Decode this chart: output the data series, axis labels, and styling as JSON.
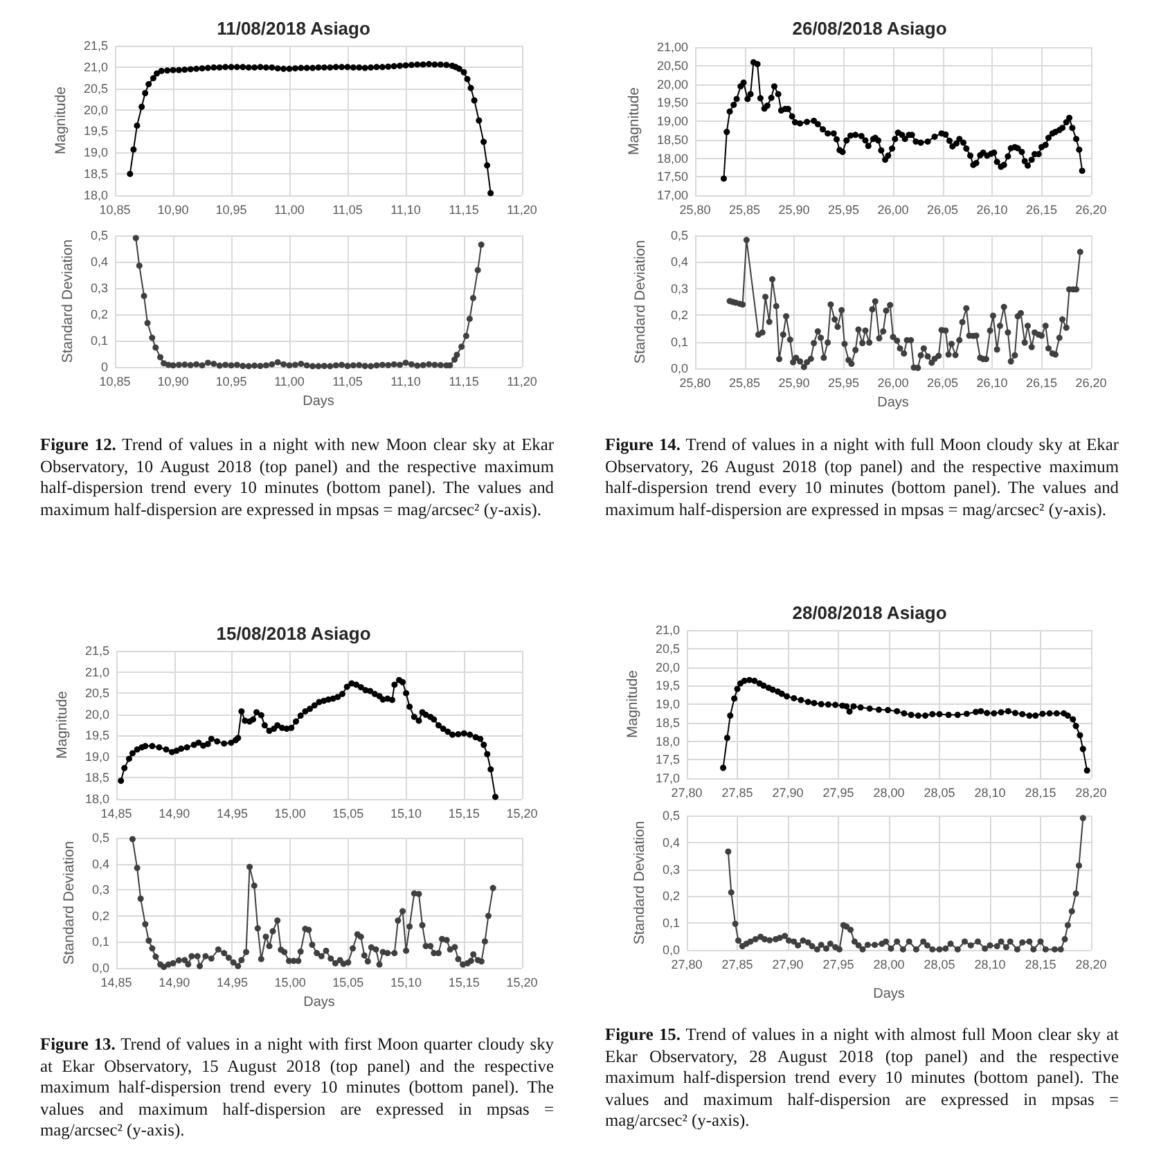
{
  "chart_data": [
    {
      "type": "line",
      "title": "11/08/2018 Asiago",
      "ylabel": "Magnitude",
      "grid": true,
      "marker": "circle",
      "line_style": "solid",
      "x": [
        10.863,
        10.866,
        10.869,
        10.873,
        10.876,
        10.879,
        10.883,
        10.886,
        10.89,
        10.895,
        10.9,
        10.905,
        10.91,
        10.915,
        10.92,
        10.925,
        10.93,
        10.935,
        10.94,
        10.945,
        10.95,
        10.955,
        10.96,
        10.965,
        10.97,
        10.975,
        10.98,
        10.985,
        10.99,
        10.995,
        11.0,
        11.005,
        11.01,
        11.015,
        11.02,
        11.025,
        11.03,
        11.035,
        11.04,
        11.045,
        11.05,
        11.055,
        11.06,
        11.065,
        11.07,
        11.075,
        11.08,
        11.085,
        11.09,
        11.095,
        11.1,
        11.105,
        11.11,
        11.115,
        11.12,
        11.125,
        11.13,
        11.135,
        11.14,
        11.143,
        11.146,
        11.15,
        11.153,
        11.156,
        11.159,
        11.163,
        11.167,
        11.17,
        11.173
      ],
      "series": [
        {
          "color": "#000000",
          "values": [
            18.5,
            19.07,
            19.63,
            20.07,
            20.39,
            20.6,
            20.74,
            20.85,
            20.91,
            20.92,
            20.93,
            20.93,
            20.94,
            20.95,
            20.96,
            20.97,
            20.98,
            20.99,
            20.99,
            21.0,
            21.0,
            21.0,
            21.0,
            20.99,
            20.99,
            21.0,
            20.99,
            20.99,
            20.97,
            20.96,
            20.96,
            20.97,
            20.98,
            20.98,
            20.98,
            20.99,
            20.99,
            20.99,
            21.0,
            21.0,
            21.0,
            20.99,
            20.99,
            20.98,
            20.99,
            21.0,
            21.0,
            21.01,
            21.02,
            21.03,
            21.04,
            21.05,
            21.06,
            21.06,
            21.07,
            21.06,
            21.06,
            21.05,
            21.03,
            21.0,
            20.96,
            20.88,
            20.72,
            20.51,
            20.22,
            19.75,
            19.25,
            18.7,
            18.05
          ]
        }
      ],
      "xlim": [
        10.85,
        11.2
      ],
      "xticks": [
        {
          "value": 10.85,
          "label": "10,85"
        },
        {
          "value": 10.9,
          "label": "10,90"
        },
        {
          "value": 10.95,
          "label": "10,95"
        },
        {
          "value": 11,
          "label": "11,00"
        },
        {
          "value": 11.05,
          "label": "11,05"
        },
        {
          "value": 11.1,
          "label": "11,10"
        },
        {
          "value": 11.15,
          "label": "11,15"
        },
        {
          "value": 11.2,
          "label": "11,20"
        }
      ],
      "ylim": [
        18,
        21.5
      ],
      "yticks": [
        {
          "value": 18,
          "label": "18,0"
        },
        {
          "value": 18.5,
          "label": "18,5"
        },
        {
          "value": 19,
          "label": "19,0"
        },
        {
          "value": 19.5,
          "label": "19,5"
        },
        {
          "value": 20,
          "label": "20,0"
        },
        {
          "value": 20.5,
          "label": "20,5"
        },
        {
          "value": 21,
          "label": "21,0"
        },
        {
          "value": 21.5,
          "label": "21,5"
        }
      ]
    },
    {
      "type": "line",
      "xlabel": "Days",
      "ylabel": "Standard Deviation",
      "grid": true,
      "marker": "circle",
      "line_style": "solid",
      "x": [
        10.868,
        10.871,
        10.875,
        10.878,
        10.882,
        10.885,
        10.889,
        10.892,
        10.896,
        10.9,
        10.905,
        10.91,
        10.915,
        10.92,
        10.925,
        10.93,
        10.935,
        10.94,
        10.945,
        10.95,
        10.955,
        10.96,
        10.965,
        10.97,
        10.975,
        10.98,
        10.985,
        10.99,
        10.995,
        11.0,
        11.005,
        11.01,
        11.015,
        11.02,
        11.025,
        11.03,
        11.035,
        11.04,
        11.045,
        11.05,
        11.055,
        11.06,
        11.065,
        11.07,
        11.075,
        11.08,
        11.085,
        11.09,
        11.095,
        11.1,
        11.105,
        11.11,
        11.115,
        11.12,
        11.125,
        11.13,
        11.135,
        11.138,
        11.142,
        11.144,
        11.148,
        11.152,
        11.155,
        11.158,
        11.162,
        11.165
      ],
      "series": [
        {
          "color": "#3f3f3f",
          "values": [
            0.49,
            0.385,
            0.27,
            0.167,
            0.111,
            0.074,
            0.037,
            0.014,
            0.008,
            0.006,
            0.008,
            0.009,
            0.007,
            0.01,
            0.006,
            0.016,
            0.012,
            0.005,
            0.008,
            0.006,
            0.008,
            0.004,
            0.003,
            0.005,
            0.004,
            0.006,
            0.01,
            0.018,
            0.01,
            0.006,
            0.008,
            0.012,
            0.006,
            0.003,
            0.003,
            0.004,
            0.003,
            0.006,
            0.008,
            0.004,
            0.006,
            0.007,
            0.004,
            0.003,
            0.006,
            0.008,
            0.007,
            0.01,
            0.008,
            0.016,
            0.01,
            0.005,
            0.007,
            0.01,
            0.008,
            0.007,
            0.006,
            0.006,
            0.028,
            0.046,
            0.077,
            0.118,
            0.183,
            0.262,
            0.368,
            0.465
          ]
        }
      ],
      "xlim": [
        10.85,
        11.2
      ],
      "xticks": [
        {
          "value": 10.85,
          "label": "10,85"
        },
        {
          "value": 10.9,
          "label": "10,90"
        },
        {
          "value": 10.95,
          "label": "10,95"
        },
        {
          "value": 11,
          "label": "11,00"
        },
        {
          "value": 11.05,
          "label": "11,05"
        },
        {
          "value": 11.1,
          "label": "11,10"
        },
        {
          "value": 11.15,
          "label": "11,15"
        },
        {
          "value": 11.2,
          "label": "11,20"
        }
      ],
      "ylim": [
        0,
        0.5
      ],
      "yticks": [
        0,
        {
          "value": 0.1,
          "label": "0,1"
        },
        {
          "value": 0.2,
          "label": "0,2"
        },
        {
          "value": 0.3,
          "label": "0,3"
        },
        {
          "value": 0.4,
          "label": "0,4"
        },
        {
          "value": 0.5,
          "label": "0,5"
        }
      ],
      "annotations": [
        "Figure 12. Trend of values in a night with new Moon clear sky at Ekar Observatory, 10 August 2018 (top panel) and the respective maximum half-dispersion trend every 10 minutes (bottom panel). The values and maximum half-dispersion are expressed in mpsas = mag/arcsec² (y-axis)."
      ]
    },
    {
      "type": "line",
      "title": "26/08/2018 Asiago",
      "ylabel": "Magnitude",
      "grid": true,
      "marker": "circle",
      "line_style": "solid",
      "x": [
        25.829,
        25.832,
        25.835,
        25.839,
        25.842,
        25.846,
        25.849,
        25.853,
        25.856,
        25.859,
        25.863,
        25.866,
        25.87,
        25.873,
        25.877,
        25.88,
        25.884,
        25.887,
        25.891,
        25.894,
        25.898,
        25.901,
        25.906,
        25.913,
        25.92,
        25.924,
        25.929,
        25.934,
        25.94,
        25.943,
        25.946,
        25.949,
        25.953,
        25.957,
        25.962,
        25.968,
        25.972,
        25.975,
        25.98,
        25.982,
        25.985,
        25.988,
        25.992,
        25.995,
        25.999,
        26.002,
        26.005,
        26.009,
        26.012,
        26.016,
        26.019,
        26.023,
        26.028,
        26.035,
        26.042,
        26.049,
        26.053,
        26.057,
        26.06,
        26.064,
        26.067,
        26.071,
        26.074,
        26.078,
        26.081,
        26.084,
        26.088,
        26.091,
        26.095,
        26.099,
        26.102,
        26.105,
        26.109,
        26.112,
        26.116,
        26.119,
        26.123,
        26.126,
        26.13,
        26.133,
        26.136,
        26.14,
        26.143,
        26.147,
        26.15,
        26.154,
        26.157,
        26.161,
        26.164,
        26.168,
        26.171,
        26.175,
        26.178,
        26.181,
        26.185,
        26.188,
        26.191
      ],
      "series": [
        {
          "color": "#000000",
          "values": [
            17.45,
            18.71,
            19.26,
            19.44,
            19.6,
            19.94,
            20.04,
            19.6,
            19.73,
            20.59,
            20.54,
            19.62,
            19.34,
            19.42,
            19.63,
            19.94,
            19.73,
            19.29,
            19.33,
            19.33,
            19.13,
            18.97,
            18.94,
            18.98,
            19.01,
            18.92,
            18.78,
            18.67,
            18.67,
            18.51,
            18.22,
            18.17,
            18.48,
            18.61,
            18.63,
            18.6,
            18.48,
            18.33,
            18.52,
            18.55,
            18.48,
            18.21,
            17.96,
            18.07,
            18.26,
            18.52,
            18.69,
            18.63,
            18.52,
            18.63,
            18.63,
            18.45,
            18.42,
            18.45,
            18.58,
            18.67,
            18.64,
            18.47,
            18.32,
            18.4,
            18.52,
            18.42,
            18.26,
            18.07,
            17.82,
            17.87,
            18.08,
            18.15,
            18.07,
            18.12,
            18.15,
            17.9,
            17.77,
            17.82,
            18.05,
            18.27,
            18.3,
            18.27,
            18.17,
            17.92,
            17.8,
            17.96,
            18.11,
            18.11,
            18.3,
            18.36,
            18.55,
            18.67,
            18.71,
            18.76,
            18.82,
            18.97,
            19.09,
            18.82,
            18.52,
            18.23,
            17.66
          ]
        }
      ],
      "xlim": [
        25.8,
        26.2
      ],
      "xticks": [
        {
          "value": 25.8,
          "label": "25,80"
        },
        {
          "value": 25.85,
          "label": "25,85"
        },
        {
          "value": 25.9,
          "label": "25,90"
        },
        {
          "value": 25.95,
          "label": "25,95"
        },
        {
          "value": 26,
          "label": "26,00"
        },
        {
          "value": 26.05,
          "label": "26,05"
        },
        {
          "value": 26.1,
          "label": "26,10"
        },
        {
          "value": 26.15,
          "label": "26,15"
        },
        {
          "value": 26.2,
          "label": "26,20"
        }
      ],
      "ylim": [
        17,
        21
      ],
      "yticks": [
        {
          "value": 17,
          "label": "17,00"
        },
        {
          "value": 17.5,
          "label": "17,50"
        },
        {
          "value": 18,
          "label": "18,00"
        },
        {
          "value": 18.5,
          "label": "18,50"
        },
        {
          "value": 19,
          "label": "19,00"
        },
        {
          "value": 19.5,
          "label": "19,50"
        },
        {
          "value": 20,
          "label": "20,00"
        },
        {
          "value": 20.5,
          "label": "20,50"
        },
        {
          "value": 21,
          "label": "21,00"
        }
      ]
    },
    {
      "type": "line",
      "xlabel": "Days",
      "ylabel": "Standard Deviation",
      "grid": true,
      "marker": "circle",
      "line_style": "solid",
      "x": [
        25.835,
        25.838,
        25.841,
        25.845,
        25.848,
        25.852,
        25.864,
        25.868,
        25.871,
        25.875,
        25.878,
        25.882,
        25.885,
        25.889,
        25.892,
        25.896,
        25.899,
        25.902,
        25.906,
        25.91,
        25.913,
        25.917,
        25.92,
        25.924,
        25.927,
        25.93,
        25.934,
        25.937,
        25.941,
        25.944,
        25.948,
        25.951,
        25.955,
        25.958,
        25.962,
        25.965,
        25.969,
        25.972,
        25.976,
        25.979,
        25.982,
        25.986,
        25.99,
        25.993,
        25.997,
        26.0,
        26.004,
        26.007,
        26.011,
        26.014,
        26.018,
        26.021,
        26.025,
        26.028,
        26.031,
        26.035,
        26.039,
        26.042,
        26.046,
        26.049,
        26.053,
        26.056,
        26.059,
        26.063,
        26.067,
        26.07,
        26.074,
        26.077,
        26.081,
        26.084,
        26.088,
        26.091,
        26.094,
        26.098,
        26.101,
        26.105,
        26.108,
        26.112,
        26.116,
        26.119,
        26.123,
        26.126,
        26.129,
        26.133,
        26.136,
        26.14,
        26.143,
        26.147,
        26.15,
        26.154,
        26.157,
        26.161,
        26.164,
        26.168,
        26.171,
        26.175,
        26.178,
        26.182,
        26.185,
        26.189
      ],
      "series": [
        {
          "color": "#3f3f3f",
          "values": [
            0.253,
            0.25,
            0.247,
            0.243,
            0.24,
            0.483,
            0.127,
            0.135,
            0.269,
            0.175,
            0.335,
            0.234,
            0.035,
            0.127,
            0.196,
            0.108,
            0.023,
            0.04,
            0.026,
            0.005,
            0.023,
            0.036,
            0.095,
            0.139,
            0.115,
            0.04,
            0.097,
            0.24,
            0.184,
            0.156,
            0.219,
            0.092,
            0.031,
            0.017,
            0.069,
            0.146,
            0.095,
            0.142,
            0.097,
            0.222,
            0.252,
            0.113,
            0.139,
            0.217,
            0.238,
            0.118,
            0.104,
            0.075,
            0.056,
            0.106,
            0.106,
            0.003,
            0.002,
            0.049,
            0.075,
            0.045,
            0.021,
            0.036,
            0.047,
            0.144,
            0.142,
            0.052,
            0.092,
            0.05,
            0.106,
            0.174,
            0.226,
            0.123,
            0.122,
            0.123,
            0.04,
            0.035,
            0.035,
            0.142,
            0.198,
            0.071,
            0.16,
            0.231,
            0.135,
            0.026,
            0.049,
            0.196,
            0.208,
            0.097,
            0.16,
            0.08,
            0.135,
            0.127,
            0.123,
            0.16,
            0.075,
            0.056,
            0.052,
            0.115,
            0.184,
            0.153,
            0.297,
            0.297,
            0.297,
            0.438
          ]
        }
      ],
      "xlim": [
        25.8,
        26.2
      ],
      "xticks": [
        {
          "value": 25.8,
          "label": "25,80"
        },
        {
          "value": 25.85,
          "label": "25,85"
        },
        {
          "value": 25.9,
          "label": "25,90"
        },
        {
          "value": 25.95,
          "label": "25,95"
        },
        {
          "value": 26,
          "label": "26,00"
        },
        {
          "value": 26.05,
          "label": "26,05"
        },
        {
          "value": 26.1,
          "label": "26,10"
        },
        {
          "value": 26.15,
          "label": "26,15"
        },
        {
          "value": 26.2,
          "label": "26,20"
        }
      ],
      "ylim": [
        0,
        0.5
      ],
      "yticks": [
        {
          "value": 0,
          "label": "0,0"
        },
        {
          "value": 0.1,
          "label": "0,1"
        },
        {
          "value": 0.2,
          "label": "0,2"
        },
        {
          "value": 0.3,
          "label": "0,3"
        },
        {
          "value": 0.4,
          "label": "0,4"
        },
        {
          "value": 0.5,
          "label": "0,5"
        }
      ],
      "annotations": [
        "Figure 14. Trend of values in a night with full Moon cloudy sky at Ekar Observatory, 26 August 2018 (top panel) and the respective maximum half-dispersion trend every 10 minutes (bottom panel). The values and maximum half-dispersion are expressed in mpsas = mag/arcsec² (y-axis)."
      ]
    },
    {
      "type": "line",
      "title": "15/08/2018 Asiago",
      "ylabel": "Magnitude",
      "grid": true,
      "marker": "circle",
      "line_style": "solid",
      "x": [
        14.854,
        14.857,
        14.861,
        14.864,
        14.868,
        14.872,
        14.875,
        14.881,
        14.887,
        14.893,
        14.898,
        14.902,
        14.906,
        14.911,
        14.917,
        14.921,
        14.925,
        14.929,
        14.932,
        14.937,
        14.943,
        14.949,
        14.953,
        14.955,
        14.958,
        14.961,
        14.965,
        14.968,
        14.971,
        14.975,
        14.978,
        14.982,
        14.986,
        14.989,
        14.993,
        14.997,
        15.001,
        15.005,
        15.009,
        15.013,
        15.017,
        15.021,
        15.025,
        15.029,
        15.033,
        15.037,
        15.041,
        15.045,
        15.049,
        15.053,
        15.057,
        15.061,
        15.065,
        15.069,
        15.073,
        15.077,
        15.08,
        15.084,
        15.088,
        15.09,
        15.094,
        15.097,
        15.1,
        15.103,
        15.107,
        15.111,
        15.114,
        15.117,
        15.121,
        15.124,
        15.128,
        15.132,
        15.136,
        15.14,
        15.145,
        15.15,
        15.155,
        15.16,
        15.164,
        15.167,
        15.17,
        15.173,
        15.177
      ],
      "series": [
        {
          "color": "#000000",
          "values": [
            18.43,
            18.73,
            18.95,
            19.08,
            19.17,
            19.22,
            19.25,
            19.25,
            19.22,
            19.17,
            19.11,
            19.14,
            19.19,
            19.22,
            19.28,
            19.33,
            19.26,
            19.3,
            19.42,
            19.36,
            19.31,
            19.33,
            19.39,
            19.44,
            20.07,
            19.85,
            19.83,
            19.88,
            20.05,
            19.98,
            19.74,
            19.61,
            19.66,
            19.74,
            19.68,
            19.66,
            19.68,
            19.83,
            19.97,
            20.07,
            20.13,
            20.21,
            20.29,
            20.32,
            20.35,
            20.37,
            20.41,
            20.48,
            20.65,
            20.73,
            20.7,
            20.64,
            20.57,
            20.55,
            20.48,
            20.43,
            20.35,
            20.37,
            20.34,
            20.7,
            20.81,
            20.76,
            20.5,
            20.18,
            19.94,
            19.85,
            20.05,
            19.99,
            19.94,
            19.88,
            19.74,
            19.66,
            19.59,
            19.52,
            19.53,
            19.55,
            19.52,
            19.46,
            19.42,
            19.28,
            19.06,
            18.7,
            18.05
          ]
        }
      ],
      "xlim": [
        14.85,
        15.2
      ],
      "xticks": [
        {
          "value": 14.85,
          "label": "14,85"
        },
        {
          "value": 14.9,
          "label": "14,90"
        },
        {
          "value": 14.95,
          "label": "14,95"
        },
        {
          "value": 15,
          "label": "15,00"
        },
        {
          "value": 15.05,
          "label": "15,05"
        },
        {
          "value": 15.1,
          "label": "15,10"
        },
        {
          "value": 15.15,
          "label": "15,15"
        },
        {
          "value": 15.2,
          "label": "15,20"
        }
      ],
      "ylim": [
        18,
        21.5
      ],
      "yticks": [
        {
          "value": 18,
          "label": "18,0"
        },
        {
          "value": 18.5,
          "label": "18,5"
        },
        {
          "value": 19,
          "label": "19,0"
        },
        {
          "value": 19.5,
          "label": "19,5"
        },
        {
          "value": 20,
          "label": "20,0"
        },
        {
          "value": 20.5,
          "label": "20,5"
        },
        {
          "value": 21,
          "label": "21,0"
        },
        {
          "value": 21.5,
          "label": "21,5"
        }
      ]
    },
    {
      "type": "line",
      "xlabel": "Days",
      "ylabel": "Standard Deviation",
      "grid": true,
      "marker": "circle",
      "line_style": "solid",
      "x": [
        14.864,
        14.868,
        14.871,
        14.875,
        14.878,
        14.881,
        14.884,
        14.888,
        14.891,
        14.895,
        14.899,
        14.904,
        14.909,
        14.912,
        14.915,
        14.92,
        14.922,
        14.927,
        14.932,
        14.938,
        14.943,
        14.947,
        14.951,
        14.955,
        14.958,
        14.962,
        14.965,
        14.969,
        14.972,
        14.975,
        14.979,
        14.982,
        14.985,
        14.989,
        14.992,
        14.995,
        14.999,
        15.003,
        15.007,
        15.009,
        15.013,
        15.016,
        15.019,
        15.023,
        15.027,
        15.031,
        15.035,
        15.039,
        15.043,
        15.046,
        15.05,
        15.054,
        15.058,
        15.061,
        15.064,
        15.067,
        15.07,
        15.074,
        15.077,
        15.08,
        15.084,
        15.09,
        15.093,
        15.097,
        15.1,
        15.103,
        15.107,
        15.111,
        15.114,
        15.117,
        15.121,
        15.124,
        15.128,
        15.131,
        15.135,
        15.138,
        15.142,
        15.145,
        15.149,
        15.153,
        15.156,
        15.158,
        15.162,
        15.165,
        15.168,
        15.171,
        15.175
      ],
      "series": [
        {
          "color": "#3f3f3f",
          "values": [
            0.495,
            0.384,
            0.266,
            0.168,
            0.105,
            0.075,
            0.043,
            0.013,
            0.004,
            0.013,
            0.018,
            0.029,
            0.03,
            0.014,
            0.045,
            0.045,
            0.007,
            0.045,
            0.036,
            0.071,
            0.057,
            0.039,
            0.021,
            0.007,
            0.03,
            0.061,
            0.388,
            0.316,
            0.152,
            0.034,
            0.12,
            0.084,
            0.141,
            0.182,
            0.07,
            0.061,
            0.027,
            0.027,
            0.027,
            0.063,
            0.15,
            0.146,
            0.089,
            0.057,
            0.045,
            0.066,
            0.036,
            0.018,
            0.03,
            0.016,
            0.021,
            0.075,
            0.129,
            0.12,
            0.048,
            0.025,
            0.079,
            0.071,
            0.013,
            0.061,
            0.057,
            0.057,
            0.182,
            0.218,
            0.066,
            0.159,
            0.286,
            0.284,
            0.164,
            0.084,
            0.084,
            0.057,
            0.057,
            0.111,
            0.107,
            0.071,
            0.08,
            0.034,
            0.013,
            0.018,
            0.027,
            0.052,
            0.03,
            0.025,
            0.102,
            0.2,
            0.307
          ]
        }
      ],
      "xlim": [
        14.85,
        15.2
      ],
      "xticks": [
        {
          "value": 14.85,
          "label": "14,85"
        },
        {
          "value": 14.9,
          "label": "14,90"
        },
        {
          "value": 14.95,
          "label": "14,95"
        },
        {
          "value": 15,
          "label": "15,00"
        },
        {
          "value": 15.05,
          "label": "15,05"
        },
        {
          "value": 15.1,
          "label": "15,10"
        },
        {
          "value": 15.15,
          "label": "15,15"
        },
        {
          "value": 15.2,
          "label": "15,20"
        }
      ],
      "ylim": [
        0,
        0.5
      ],
      "yticks": [
        {
          "value": 0,
          "label": "0,0"
        },
        {
          "value": 0.1,
          "label": "0,1"
        },
        {
          "value": 0.2,
          "label": "0,2"
        },
        {
          "value": 0.3,
          "label": "0,3"
        },
        {
          "value": 0.4,
          "label": "0,4"
        },
        {
          "value": 0.5,
          "label": "0,5"
        }
      ],
      "annotations": [
        "Figure 13. Trend of values in a night with first Moon quarter cloudy sky at Ekar Observatory, 15 August 2018 (top panel) and the respective maximum half-dispersion trend every 10 minutes (bottom panel). The values and maximum half-dispersion are expressed in mpsas = mag/arcsec² (y-axis)."
      ]
    },
    {
      "type": "line",
      "title": "28/08/2018 Asiago",
      "ylabel": "Magnitude",
      "grid": true,
      "marker": "circle",
      "line_style": "solid",
      "x": [
        27.836,
        27.84,
        27.843,
        27.847,
        27.85,
        27.853,
        27.857,
        27.862,
        27.867,
        27.872,
        27.876,
        27.881,
        27.885,
        27.89,
        27.894,
        27.899,
        27.906,
        27.913,
        27.92,
        27.926,
        27.933,
        27.94,
        27.947,
        27.954,
        27.958,
        27.961,
        27.965,
        27.972,
        27.981,
        27.99,
        27.999,
        28.008,
        28.015,
        28.022,
        28.029,
        28.036,
        28.043,
        28.05,
        28.059,
        28.068,
        28.077,
        28.086,
        28.091,
        28.097,
        28.104,
        28.111,
        28.118,
        28.125,
        28.132,
        28.139,
        28.145,
        28.152,
        28.159,
        28.166,
        28.173,
        28.177,
        28.182,
        28.185,
        28.189,
        28.192,
        28.196
      ],
      "series": [
        {
          "color": "#000000",
          "values": [
            17.28,
            18.09,
            18.69,
            19.15,
            19.41,
            19.56,
            19.63,
            19.65,
            19.63,
            19.56,
            19.5,
            19.44,
            19.39,
            19.34,
            19.28,
            19.21,
            19.16,
            19.11,
            19.06,
            19.03,
            19.0,
            18.99,
            18.98,
            18.96,
            18.94,
            18.8,
            18.94,
            18.91,
            18.88,
            18.85,
            18.84,
            18.81,
            18.75,
            18.71,
            18.69,
            18.69,
            18.73,
            18.73,
            18.71,
            18.71,
            18.74,
            18.79,
            18.81,
            18.76,
            18.75,
            18.78,
            18.81,
            18.76,
            18.73,
            18.69,
            18.69,
            18.74,
            18.75,
            18.75,
            18.75,
            18.69,
            18.59,
            18.41,
            18.16,
            17.79,
            17.21
          ]
        }
      ],
      "xlim": [
        27.8,
        28.2
      ],
      "xticks": [
        {
          "value": 27.8,
          "label": "27,80"
        },
        {
          "value": 27.85,
          "label": "27,85"
        },
        {
          "value": 27.9,
          "label": "27,90"
        },
        {
          "value": 27.95,
          "label": "27,95"
        },
        {
          "value": 28,
          "label": "28,00"
        },
        {
          "value": 28.05,
          "label": "28,05"
        },
        {
          "value": 28.1,
          "label": "28,10"
        },
        {
          "value": 28.15,
          "label": "28,15"
        },
        {
          "value": 28.2,
          "label": "28,20"
        }
      ],
      "ylim": [
        17,
        21
      ],
      "yticks": [
        {
          "value": 17,
          "label": "17,0"
        },
        {
          "value": 17.5,
          "label": "17,5"
        },
        {
          "value": 18,
          "label": "18,0"
        },
        {
          "value": 18.5,
          "label": "18,5"
        },
        {
          "value": 19,
          "label": "19,0"
        },
        {
          "value": 19.5,
          "label": "19,5"
        },
        {
          "value": 20,
          "label": "20,0"
        },
        {
          "value": 20.5,
          "label": "20,5"
        },
        {
          "value": 21,
          "label": "21,0"
        }
      ]
    },
    {
      "type": "line",
      "xlabel": "Days",
      "ylabel": "Standard Deviation",
      "grid": true,
      "marker": "circle",
      "line_style": "solid",
      "x": [
        27.841,
        27.844,
        27.848,
        27.851,
        27.855,
        27.859,
        27.863,
        27.868,
        27.873,
        27.877,
        27.882,
        27.888,
        27.892,
        27.897,
        27.901,
        27.906,
        27.91,
        27.915,
        27.92,
        27.924,
        27.929,
        27.933,
        27.938,
        27.942,
        27.947,
        27.951,
        27.955,
        27.958,
        27.962,
        27.966,
        27.97,
        27.974,
        27.979,
        27.986,
        27.993,
        27.997,
        28.002,
        28.008,
        28.014,
        28.02,
        28.027,
        28.034,
        28.038,
        28.043,
        28.05,
        28.056,
        28.061,
        28.068,
        28.075,
        28.081,
        28.088,
        28.095,
        28.1,
        28.107,
        28.111,
        28.116,
        28.12,
        28.127,
        28.132,
        28.139,
        28.143,
        28.15,
        28.155,
        28.164,
        28.17,
        28.174,
        28.177,
        28.181,
        28.185,
        28.188,
        28.192
      ],
      "series": [
        {
          "color": "#3f3f3f",
          "values": [
            0.366,
            0.214,
            0.097,
            0.035,
            0.014,
            0.023,
            0.031,
            0.04,
            0.049,
            0.04,
            0.036,
            0.04,
            0.045,
            0.052,
            0.035,
            0.031,
            0.017,
            0.035,
            0.028,
            0.014,
            0.002,
            0.019,
            0.005,
            0.023,
            0.01,
            0.002,
            0.092,
            0.087,
            0.075,
            0.031,
            0.017,
            0.002,
            0.019,
            0.019,
            0.023,
            0.031,
            0.005,
            0.031,
            0.002,
            0.031,
            0.002,
            0.031,
            0.017,
            0.002,
            0.002,
            0.005,
            0.023,
            0.002,
            0.031,
            0.017,
            0.031,
            0.005,
            0.017,
            0.014,
            0.031,
            0.01,
            0.031,
            0.002,
            0.028,
            0.031,
            0.002,
            0.031,
            0.002,
            0.002,
            0.002,
            0.04,
            0.092,
            0.144,
            0.21,
            0.314,
            0.491
          ]
        }
      ],
      "xlim": [
        27.8,
        28.2
      ],
      "xticks": [
        {
          "value": 27.8,
          "label": "27,80"
        },
        {
          "value": 27.85,
          "label": "27,85"
        },
        {
          "value": 27.9,
          "label": "27,90"
        },
        {
          "value": 27.95,
          "label": "27,95"
        },
        {
          "value": 28,
          "label": "28,00"
        },
        {
          "value": 28.05,
          "label": "28,05"
        },
        {
          "value": 28.1,
          "label": "28,10"
        },
        {
          "value": 28.15,
          "label": "28,15"
        },
        {
          "value": 28.2,
          "label": "28,20"
        }
      ],
      "ylim": [
        0,
        0.5
      ],
      "yticks": [
        {
          "value": 0,
          "label": "0,0"
        },
        {
          "value": 0.1,
          "label": "0,1"
        },
        {
          "value": 0.2,
          "label": "0,2"
        },
        {
          "value": 0.3,
          "label": "0,3"
        },
        {
          "value": 0.4,
          "label": "0,4"
        },
        {
          "value": 0.5,
          "label": "0,5"
        }
      ],
      "annotations": [
        "Figure 15. Trend of values in a night with almost full Moon clear sky at Ekar Observatory, 28 August 2018 (top panel) and the respective maximum half-dispersion trend every 10 minutes (bottom panel). The values and maximum half-dispersion are expressed in mpsas = mag/arcsec² (y-axis)."
      ]
    }
  ]
}
